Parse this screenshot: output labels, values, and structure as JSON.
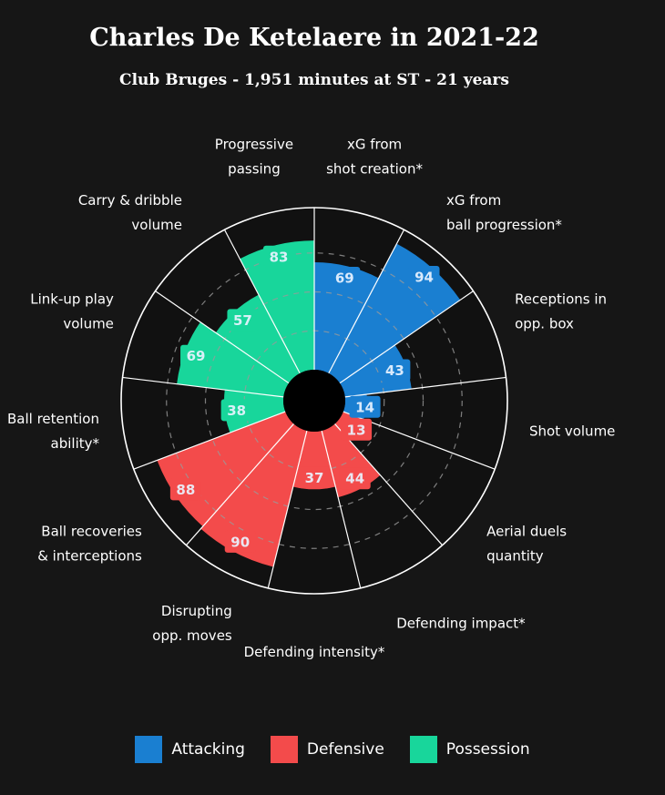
{
  "title": "Charles De Ketelaere in 2021-22",
  "subtitle": "Club Bruges - 1,951 minutes at ST - 21 years",
  "colors": {
    "attacking": "#1a7fd1",
    "defensive": "#f34b4b",
    "possession": "#18d69b",
    "background": "#161616"
  },
  "chart_data": {
    "type": "polar-bar",
    "title": "Charles De Ketelaere in 2021-22",
    "subtitle": "Club Bruges - 1,951 minutes at ST - 21 years",
    "range": [
      0,
      100
    ],
    "legend": [
      {
        "name": "Attacking",
        "color": "#1a7fd1"
      },
      {
        "name": "Defensive",
        "color": "#f34b4b"
      },
      {
        "name": "Possession",
        "color": "#18d69b"
      }
    ],
    "metrics": [
      {
        "label": "xG from\nshot creation*",
        "value": 69,
        "group": "attacking"
      },
      {
        "label": "xG from\nball progression*",
        "value": 94,
        "group": "attacking"
      },
      {
        "label": "Receptions in\nopp. box",
        "value": 43,
        "group": "attacking"
      },
      {
        "label": "Shot volume",
        "value": 14,
        "group": "attacking"
      },
      {
        "label": "Aerial duels\nquantity",
        "value": 13,
        "group": "defensive"
      },
      {
        "label": "Defending impact*",
        "value": 44,
        "group": "defensive"
      },
      {
        "label": "Defending intensity*",
        "value": 37,
        "group": "defensive"
      },
      {
        "label": "Disrupting\nopp. moves",
        "value": 90,
        "group": "defensive"
      },
      {
        "label": "Ball recoveries\n& interceptions",
        "value": 88,
        "group": "defensive"
      },
      {
        "label": "Ball retention\nability*",
        "value": 38,
        "group": "possession"
      },
      {
        "label": "Link-up play\nvolume",
        "value": 69,
        "group": "possession"
      },
      {
        "label": "Carry & dribble\nvolume",
        "value": 57,
        "group": "possession"
      },
      {
        "label": "Progressive\npassing",
        "value": 83,
        "group": "possession"
      }
    ]
  }
}
